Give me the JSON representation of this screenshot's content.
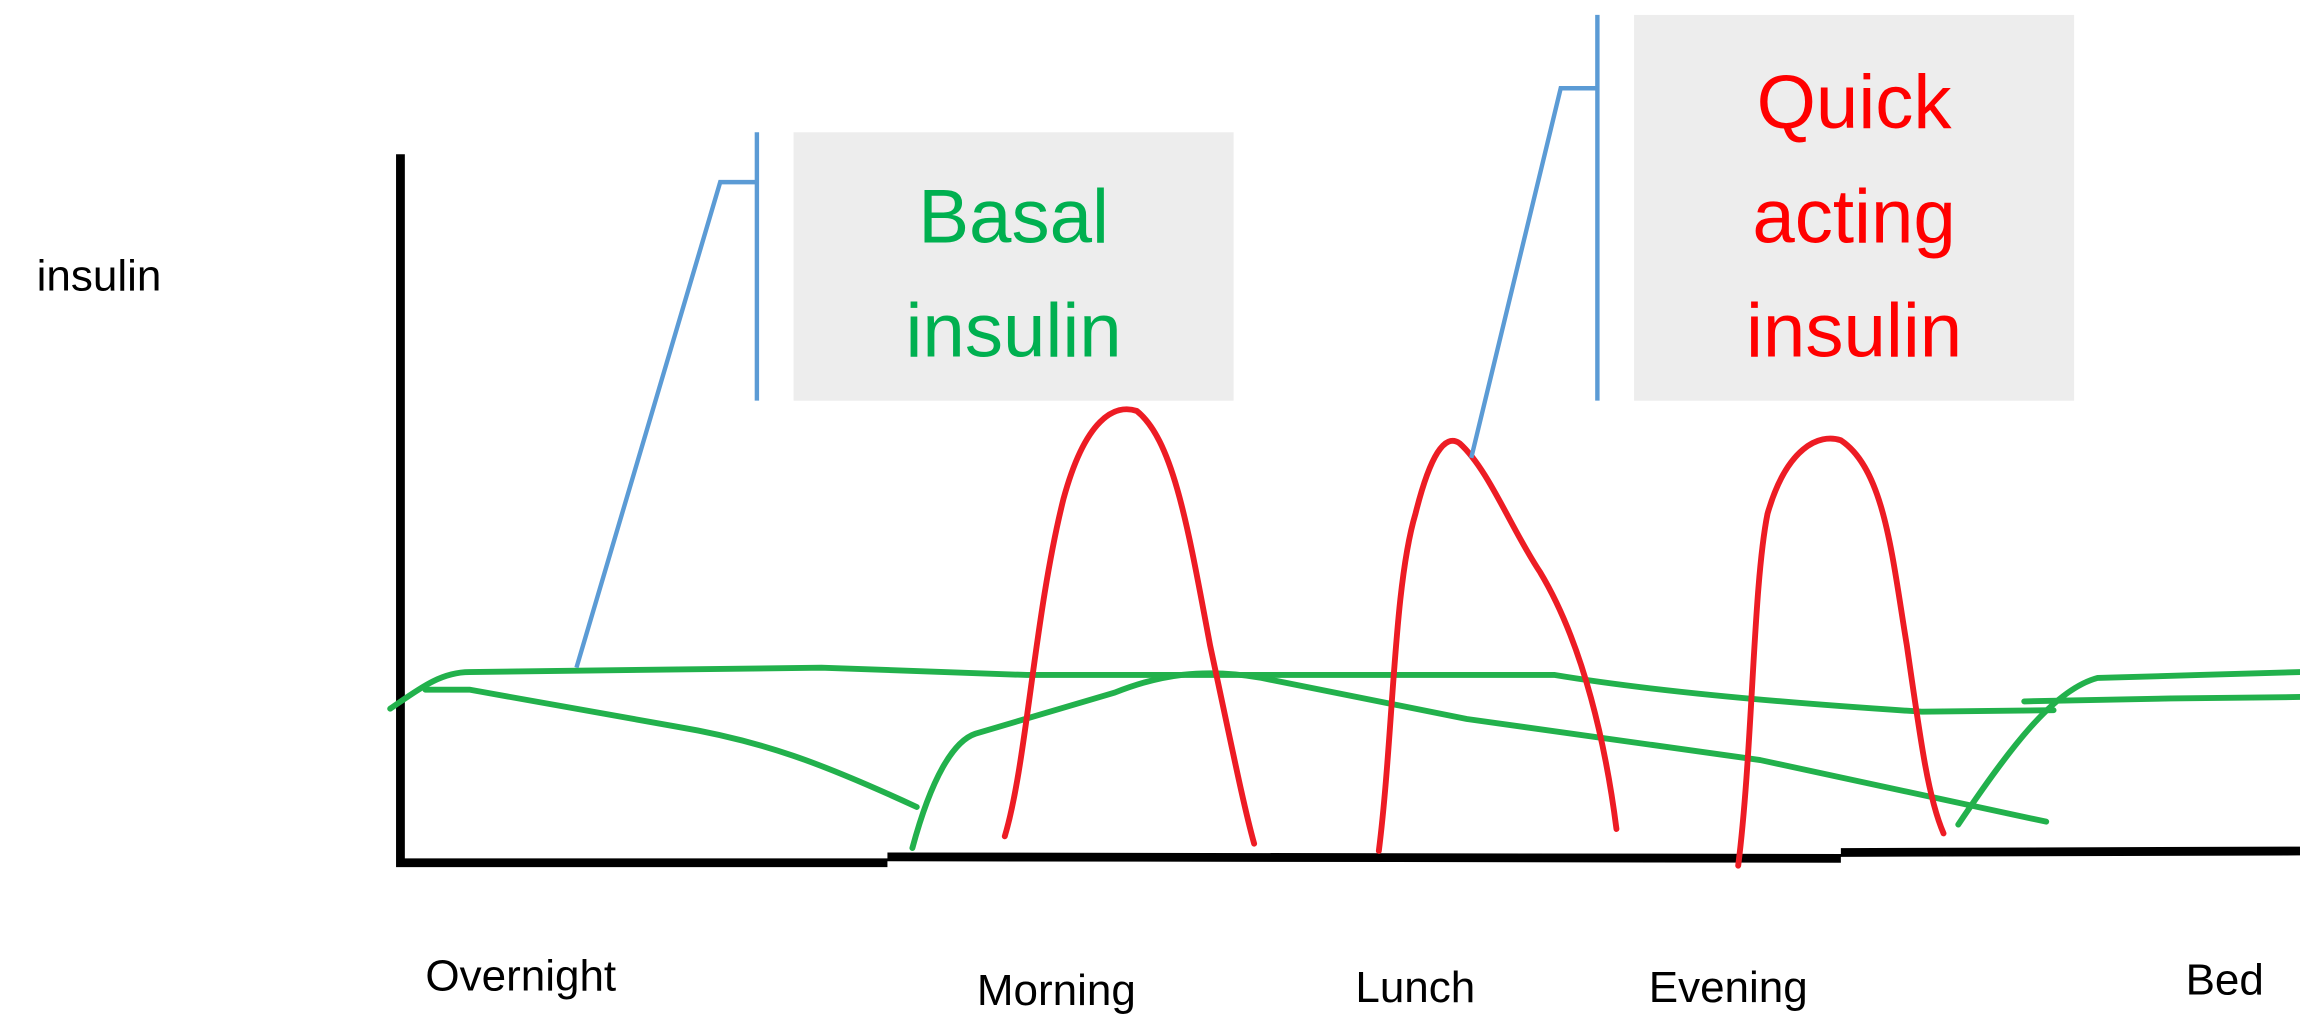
{
  "axis_label": "insulin",
  "callouts": [
    {
      "lines": [
        "Basal",
        "insulin"
      ]
    },
    {
      "lines": [
        "Quick",
        "acting",
        "insulin"
      ]
    }
  ],
  "times": [
    "Overnight",
    "Morning",
    "Lunch",
    "Evening",
    "Bed"
  ]
}
